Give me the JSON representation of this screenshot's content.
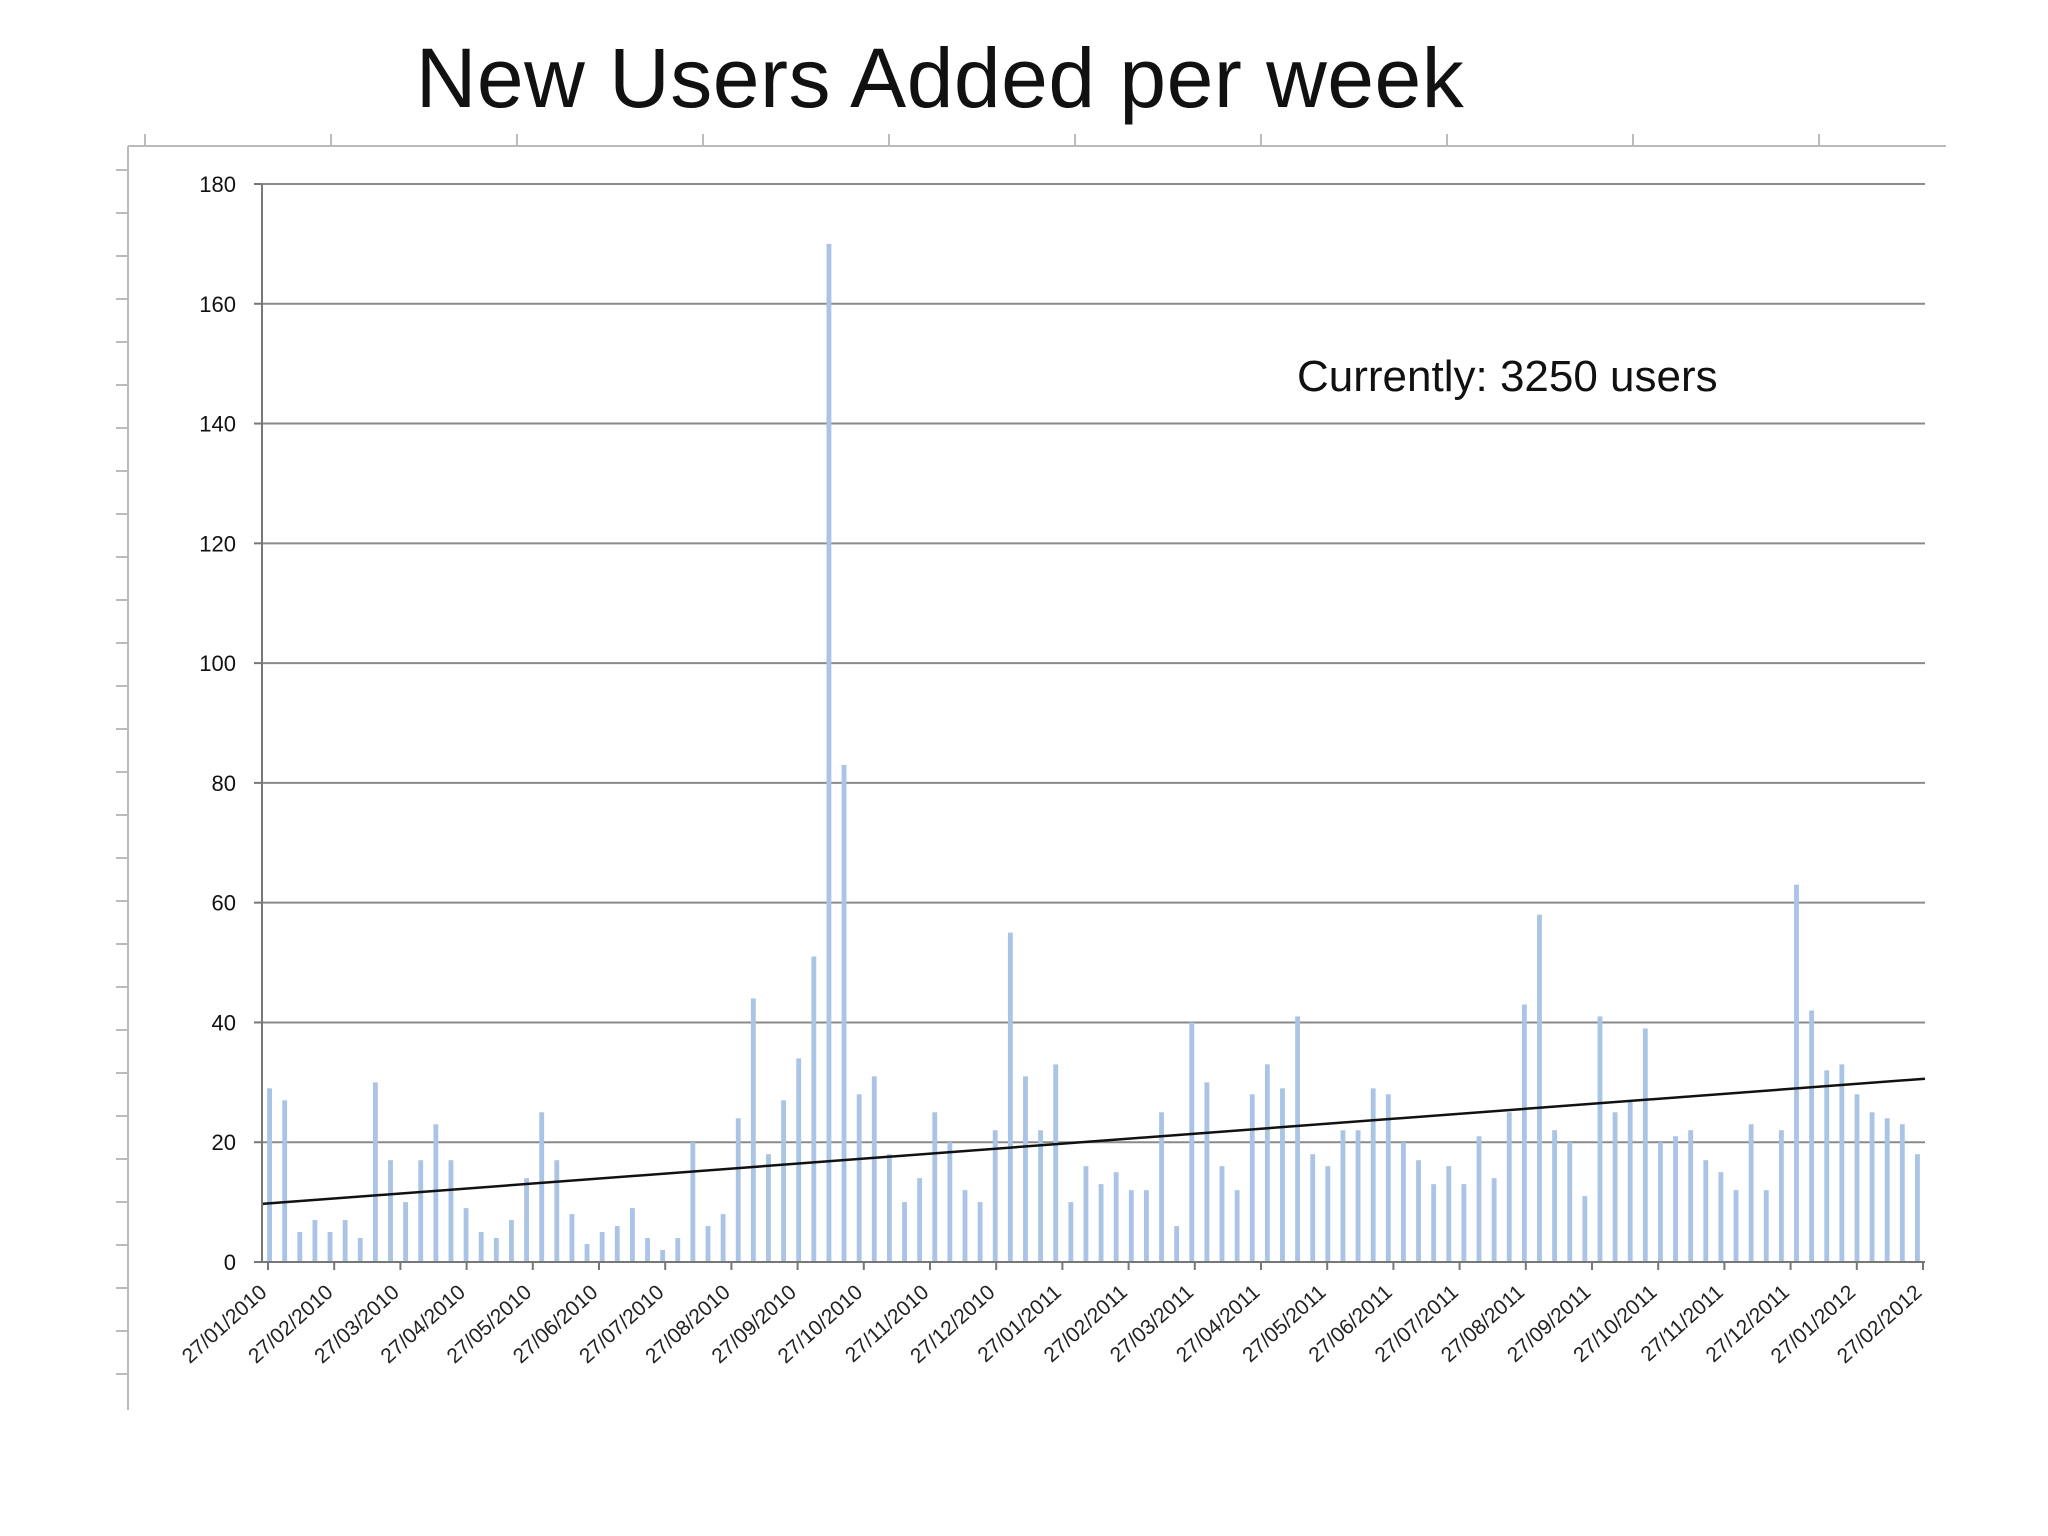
{
  "slide": {
    "title": "New Users Added per week",
    "annotation": "Currently: 3250 users"
  },
  "chart_data": {
    "type": "bar",
    "title": "New Users Added per week",
    "xlabel": "",
    "ylabel": "",
    "ylim": [
      0,
      180
    ],
    "yticks": [
      0,
      20,
      40,
      60,
      80,
      100,
      120,
      140,
      160,
      180
    ],
    "grid": true,
    "legend": "none",
    "bar_color": "#a9c4e4",
    "trend_color": "#111111",
    "x_tick_labels": [
      "27/01/2010",
      "27/02/2010",
      "27/03/2010",
      "27/04/2010",
      "27/05/2010",
      "27/06/2010",
      "27/07/2010",
      "27/08/2010",
      "27/09/2010",
      "27/10/2010",
      "27/11/2010",
      "27/12/2010",
      "27/01/2011",
      "27/02/2011",
      "27/03/2011",
      "27/04/2011",
      "27/05/2011",
      "27/06/2011",
      "27/07/2011",
      "27/08/2011",
      "27/09/2011",
      "27/10/2011",
      "27/11/2011",
      "27/12/2011",
      "27/01/2012",
      "27/02/2012"
    ],
    "values": [
      29,
      27,
      5,
      7,
      5,
      7,
      4,
      30,
      17,
      10,
      17,
      23,
      17,
      9,
      5,
      4,
      7,
      14,
      25,
      17,
      8,
      3,
      5,
      6,
      9,
      4,
      2,
      4,
      20,
      6,
      8,
      24,
      44,
      18,
      27,
      34,
      51,
      170,
      83,
      28,
      31,
      18,
      10,
      14,
      25,
      20,
      12,
      10,
      22,
      55,
      31,
      22,
      33,
      10,
      16,
      13,
      15,
      12,
      12,
      25,
      6,
      40,
      30,
      16,
      12,
      28,
      33,
      29,
      41,
      18,
      16,
      22,
      22,
      29,
      28,
      20,
      17,
      13,
      16,
      13,
      21,
      14,
      25,
      43,
      58,
      22,
      20,
      11,
      41,
      25,
      27,
      39,
      20,
      21,
      22,
      17,
      15,
      12,
      23,
      12,
      22,
      63,
      42,
      32,
      33,
      28,
      25,
      24,
      23,
      18
    ],
    "trendline": {
      "start": 9.7,
      "end": 30.6
    },
    "annotation": "Currently: 3250 users"
  }
}
